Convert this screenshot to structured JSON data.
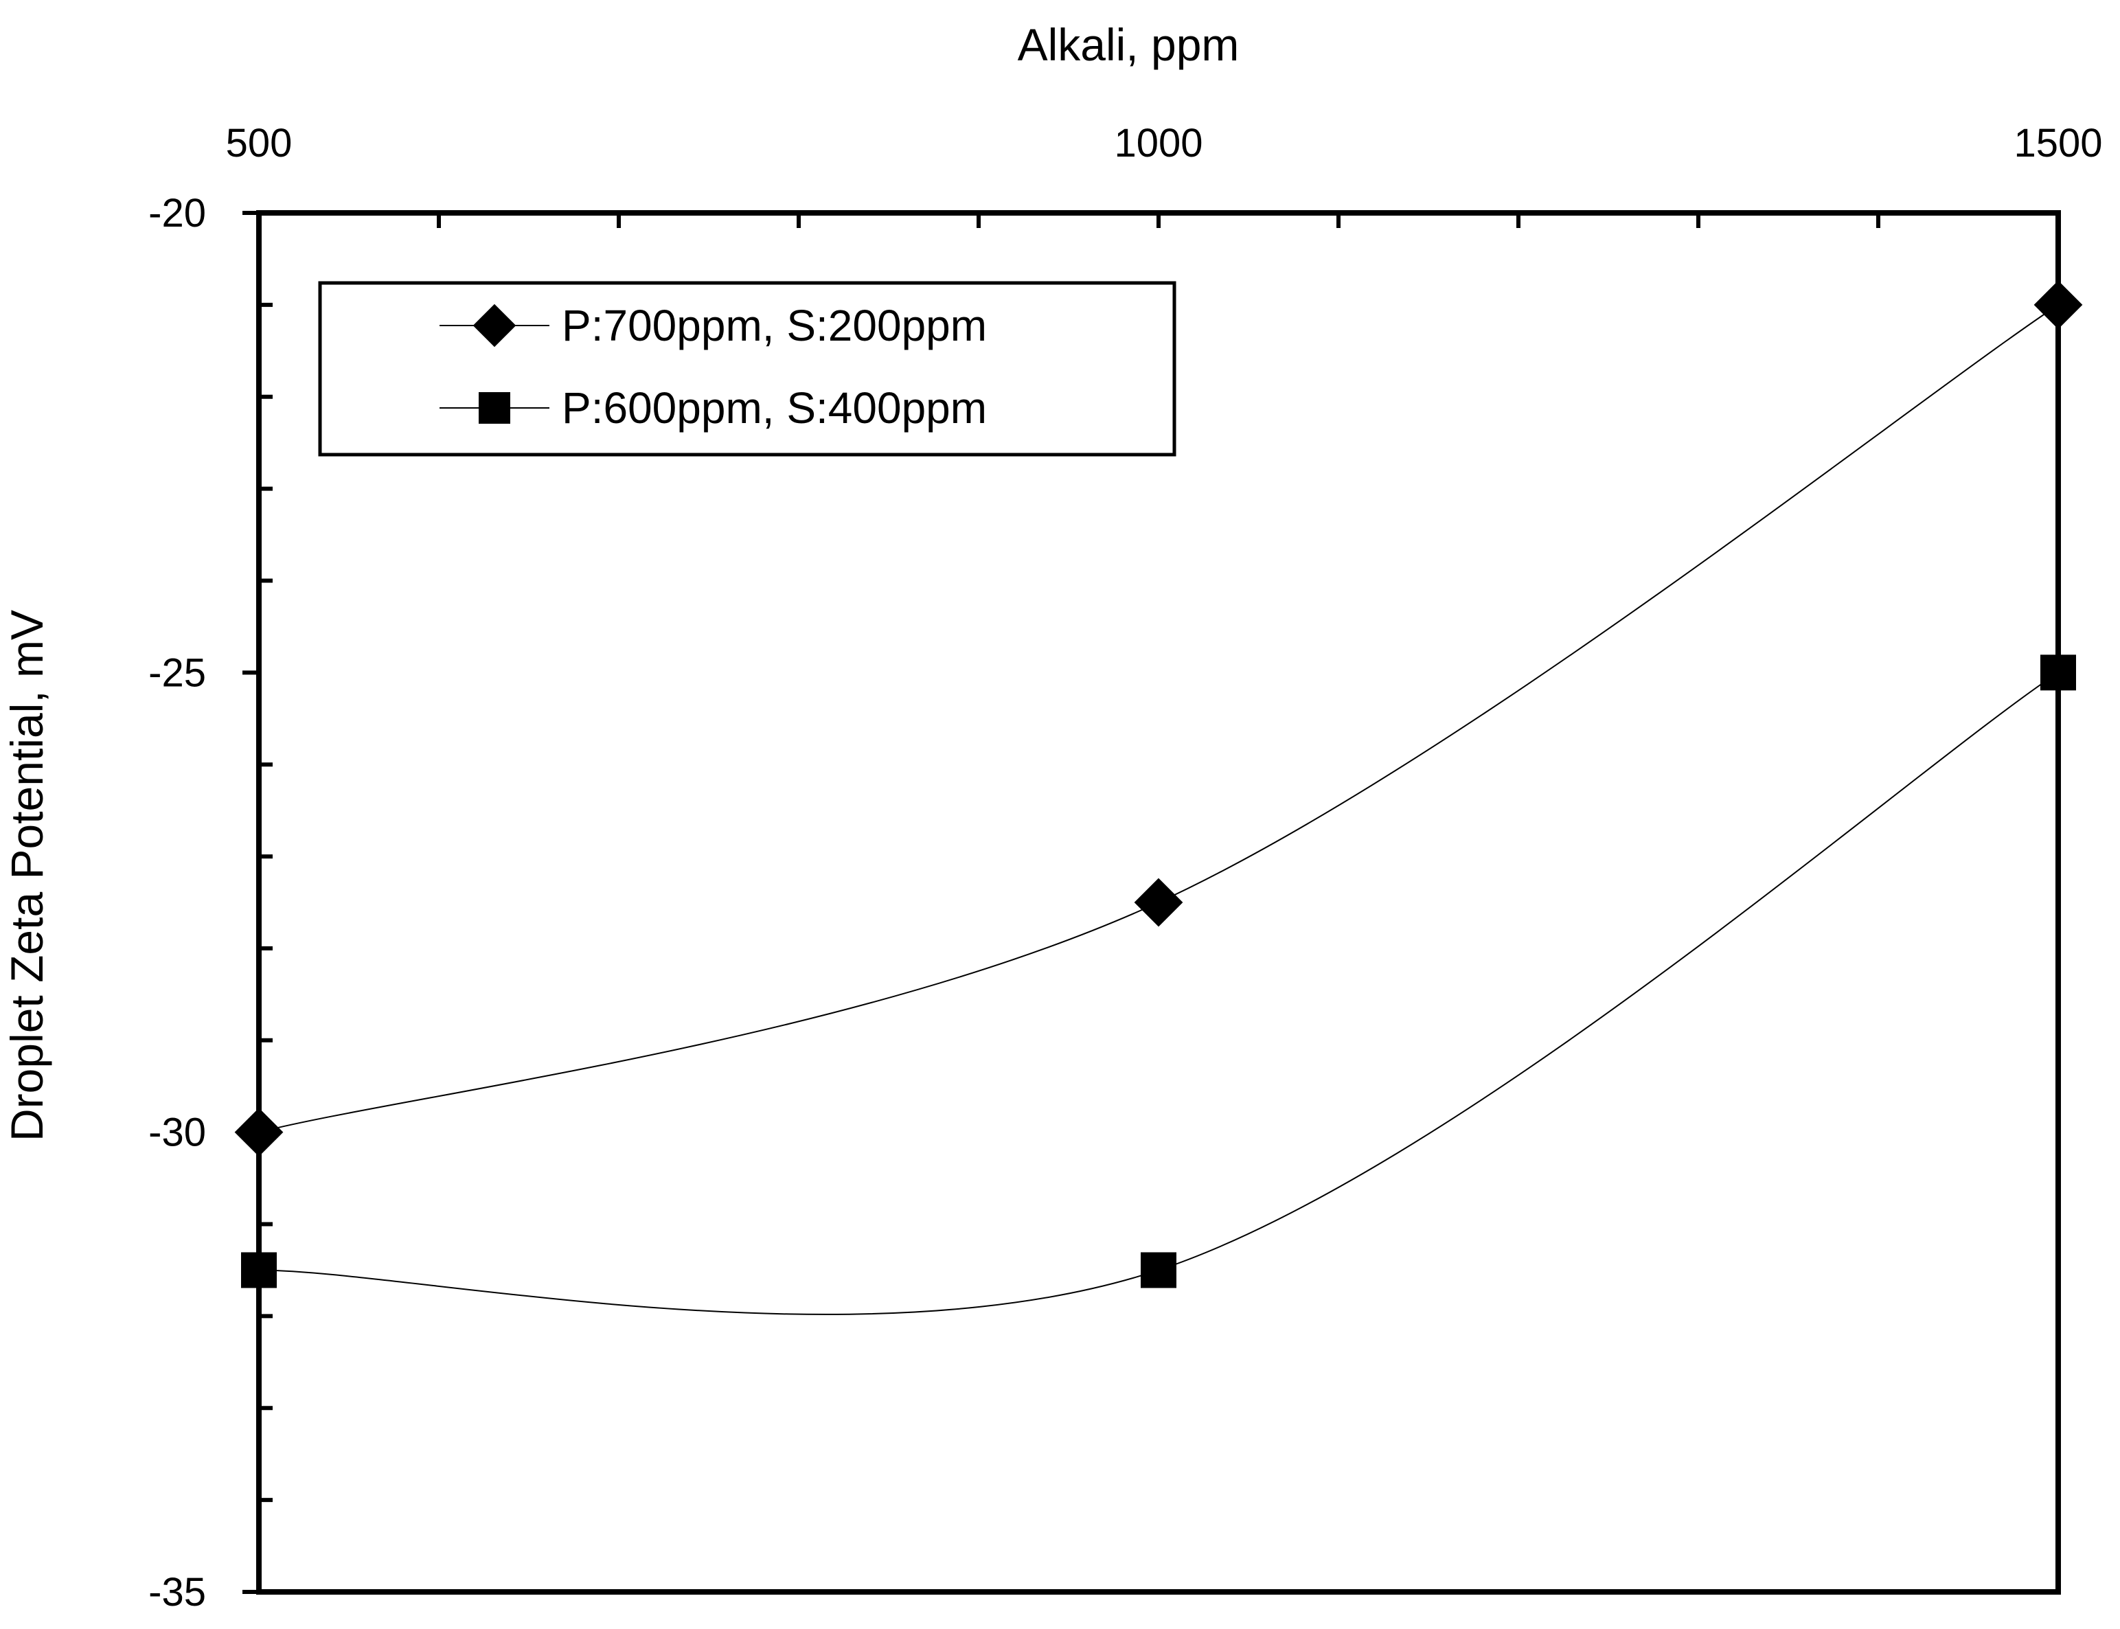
{
  "chart_data": {
    "type": "line",
    "title": "",
    "xlabel": "Alkali, ppm",
    "ylabel": "Droplet Zeta Potential, mV",
    "x_axis_position": "top",
    "xlim": [
      500,
      1500
    ],
    "ylim": [
      -35,
      -20
    ],
    "x_ticks": [
      500,
      1000,
      1500
    ],
    "x_tick_labels": [
      "500",
      "1000",
      "1500"
    ],
    "x_minor_step": 100,
    "y_ticks": [
      -35,
      -30,
      -25,
      -20
    ],
    "y_tick_labels": [
      "-35",
      "-30",
      "-25",
      "-20"
    ],
    "y_minor_step": 1,
    "grid": false,
    "smooth_lines": true,
    "legend_position": "top-left",
    "series": [
      {
        "name": "P:700ppm, S:200ppm",
        "marker": "diamond",
        "color": "#000000",
        "x": [
          500,
          1000,
          1500
        ],
        "y": [
          -30,
          -27.5,
          -21
        ]
      },
      {
        "name": "P:600ppm, S:400ppm",
        "marker": "square",
        "color": "#000000",
        "x": [
          500,
          1000,
          1500
        ],
        "y": [
          -31.5,
          -31.5,
          -25
        ]
      }
    ]
  }
}
